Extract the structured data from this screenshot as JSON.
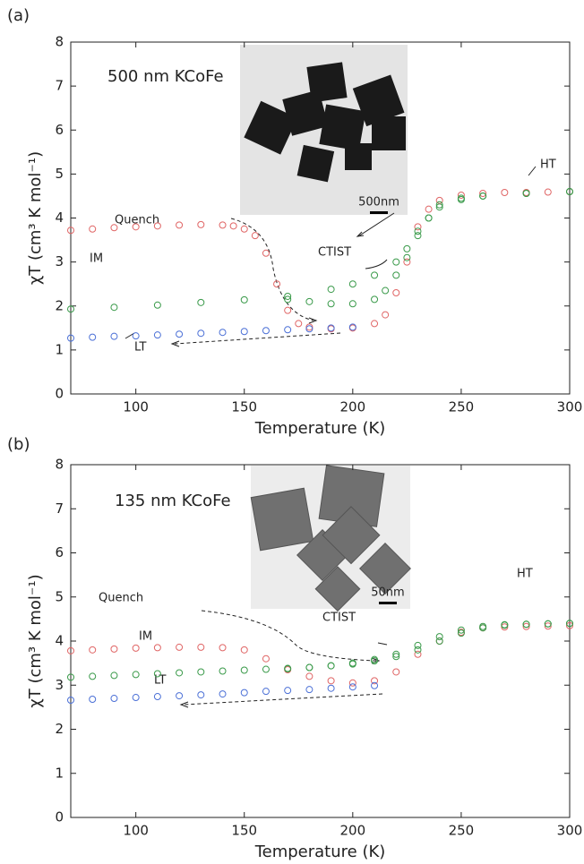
{
  "chart_data": [
    {
      "type": "scatter",
      "panel_label": "(a)",
      "x_label": "Temperature (K)",
      "y_label": "χT (cm³ K mol⁻¹)",
      "sample_label": "500 nm KCoFe",
      "scale_bar_label": "500nm",
      "annotations": [
        "HT",
        "CTIST"
      ],
      "xlim": [
        70,
        300
      ],
      "ylim": [
        0,
        8
      ],
      "xticks": [
        100,
        150,
        200,
        250,
        300
      ],
      "yticks": [
        0,
        1,
        2,
        3,
        4,
        5,
        6,
        7,
        8
      ],
      "series": [
        {
          "name": "Quench",
          "color": "#e06666",
          "x": [
            70,
            80,
            90,
            100,
            110,
            120,
            130,
            140,
            145,
            150,
            155,
            160,
            165,
            170,
            175,
            180,
            190,
            200,
            210,
            215,
            220,
            225,
            230,
            235,
            240,
            250,
            260,
            270,
            280,
            290,
            300
          ],
          "values": [
            3.72,
            3.75,
            3.78,
            3.8,
            3.82,
            3.84,
            3.85,
            3.84,
            3.82,
            3.75,
            3.6,
            3.2,
            2.5,
            1.9,
            1.6,
            1.52,
            1.48,
            1.5,
            1.6,
            1.8,
            2.3,
            3.0,
            3.8,
            4.2,
            4.4,
            4.52,
            4.56,
            4.58,
            4.58,
            4.59,
            4.6
          ]
        },
        {
          "name": "LT",
          "color": "#4a6fd6",
          "x": [
            70,
            80,
            90,
            100,
            110,
            120,
            130,
            140,
            150,
            160,
            170,
            180,
            190,
            200
          ],
          "values": [
            1.27,
            1.29,
            1.31,
            1.32,
            1.34,
            1.36,
            1.38,
            1.4,
            1.42,
            1.44,
            1.46,
            1.48,
            1.5,
            1.52
          ]
        },
        {
          "name": "IM",
          "color": "#3a9a4a",
          "x": [
            70,
            90,
            110,
            130,
            150,
            170,
            190,
            200,
            210,
            220,
            225,
            230,
            235,
            240,
            250,
            260,
            280,
            300
          ],
          "values": [
            1.93,
            1.97,
            2.02,
            2.08,
            2.14,
            2.22,
            2.38,
            2.5,
            2.7,
            3.0,
            3.3,
            3.7,
            4.0,
            4.25,
            4.42,
            4.5,
            4.56,
            4.6
          ]
        },
        {
          "color": "#3a9a4a",
          "x": [
            300,
            280,
            260,
            250,
            240,
            235,
            230,
            225,
            220,
            215,
            210,
            200,
            190,
            180,
            170
          ],
          "values": [
            4.6,
            4.56,
            4.5,
            4.45,
            4.3,
            4.0,
            3.6,
            3.1,
            2.7,
            2.35,
            2.15,
            2.05,
            2.05,
            2.1,
            2.15
          ]
        }
      ]
    },
    {
      "type": "scatter",
      "panel_label": "(b)",
      "x_label": "Temperature (K)",
      "y_label": "χT (cm³ K mol⁻¹)",
      "sample_label": "135 nm KCoFe",
      "scale_bar_label": "50nm",
      "annotations": [
        "HT",
        "CTIST"
      ],
      "xlim": [
        70,
        300
      ],
      "ylim": [
        0,
        8
      ],
      "xticks": [
        100,
        150,
        200,
        250,
        300
      ],
      "yticks": [
        0,
        1,
        2,
        3,
        4,
        5,
        6,
        7,
        8
      ],
      "series": [
        {
          "name": "Quench",
          "color": "#e06666",
          "x": [
            70,
            80,
            90,
            100,
            110,
            120,
            130,
            140,
            150,
            160,
            170,
            180,
            190,
            200,
            210,
            220,
            230,
            240,
            250,
            260,
            270,
            280,
            290,
            300
          ],
          "values": [
            3.78,
            3.8,
            3.82,
            3.84,
            3.85,
            3.86,
            3.86,
            3.85,
            3.8,
            3.6,
            3.35,
            3.2,
            3.1,
            3.05,
            3.1,
            3.3,
            3.7,
            4.0,
            4.2,
            4.3,
            4.32,
            4.33,
            4.34,
            4.35
          ]
        },
        {
          "name": "LT",
          "color": "#4a6fd6",
          "x": [
            70,
            80,
            90,
            100,
            110,
            120,
            130,
            140,
            150,
            160,
            170,
            180,
            190,
            200,
            210
          ],
          "values": [
            2.66,
            2.68,
            2.7,
            2.72,
            2.74,
            2.76,
            2.78,
            2.8,
            2.83,
            2.86,
            2.88,
            2.9,
            2.93,
            2.96,
            2.99
          ]
        },
        {
          "name": "IM",
          "color": "#3a9a4a",
          "x": [
            70,
            80,
            90,
            100,
            110,
            120,
            130,
            140,
            150,
            160,
            170,
            180,
            190,
            200,
            210,
            220,
            230,
            240,
            250,
            260,
            270,
            280,
            290,
            300
          ],
          "values": [
            3.18,
            3.2,
            3.22,
            3.24,
            3.26,
            3.28,
            3.3,
            3.32,
            3.34,
            3.36,
            3.38,
            3.4,
            3.44,
            3.5,
            3.58,
            3.7,
            3.9,
            4.1,
            4.25,
            4.33,
            4.37,
            4.38,
            4.39,
            4.4
          ]
        },
        {
          "color": "#3a9a4a",
          "x": [
            300,
            290,
            280,
            270,
            260,
            250,
            240,
            230,
            220,
            210,
            200,
            190,
            180,
            170
          ],
          "values": [
            4.4,
            4.39,
            4.38,
            4.36,
            4.3,
            4.18,
            4.0,
            3.8,
            3.65,
            3.55,
            3.48,
            3.44,
            3.4,
            3.37
          ]
        }
      ]
    }
  ]
}
